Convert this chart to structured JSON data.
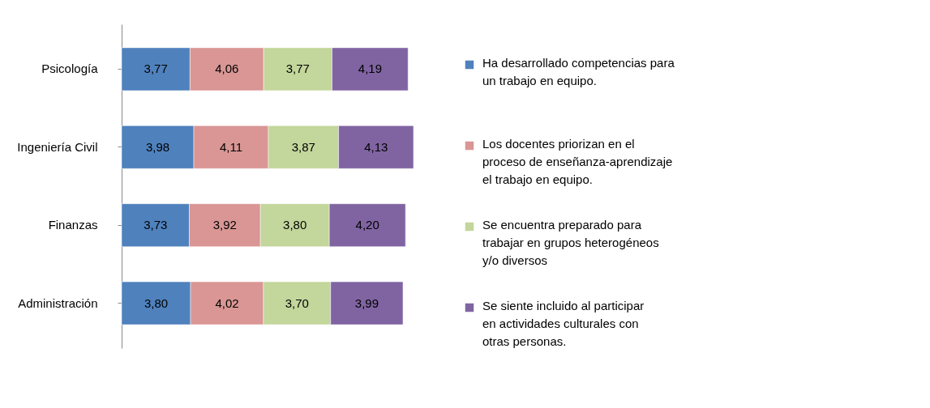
{
  "chart_data": {
    "type": "bar",
    "orientation": "horizontal",
    "stacked": true,
    "legend": "right",
    "categories": [
      "Psicología",
      "Ingeniería Civil",
      "Finanzas",
      "Administración"
    ],
    "series": [
      {
        "name": "Ha desarrollado competencias para un trabajo  en equipo.",
        "color": "#4f81bd",
        "values": [
          3.77,
          3.98,
          3.73,
          3.8
        ],
        "value_labels": [
          "3,77",
          "3,98",
          "3,73",
          "3,80"
        ]
      },
      {
        "name": "Los docentes priorizan en el proceso de enseñanza-aprendizaje el trabajo en equipo.",
        "color": "#d99694",
        "values": [
          4.06,
          4.11,
          3.92,
          4.02
        ],
        "value_labels": [
          "4,06",
          "4,11",
          "3,92",
          "4,02"
        ]
      },
      {
        "name": "Se encuentra preparado para trabajar en grupos heterogéneos y/o diversos",
        "color": "#c3d69b",
        "values": [
          3.77,
          3.87,
          3.8,
          3.7
        ],
        "value_labels": [
          "3,77",
          "3,87",
          "3,80",
          "3,70"
        ]
      },
      {
        "name": "Se siente incluido al participar en actividades culturales con otras personas.",
        "color": "#8064a2",
        "values": [
          4.19,
          4.13,
          4.2,
          3.99
        ],
        "value_labels": [
          "4,19",
          "4,13",
          "4,20",
          "3,99"
        ]
      }
    ]
  }
}
